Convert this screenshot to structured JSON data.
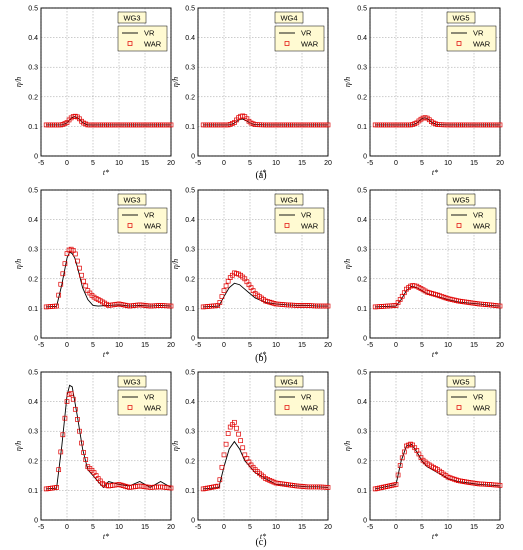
{
  "figure": {
    "row_labels": [
      "(a)",
      "(b)",
      "(c)"
    ]
  },
  "style": {
    "vr_color": "#000000",
    "war_color": "#e00000",
    "legend_bg": "#fffad2"
  },
  "axes": {
    "xlabel": "t*",
    "ylabel": "η/h",
    "xlim": [
      -5,
      20
    ],
    "ylim": [
      0,
      0.5
    ],
    "xticks": [
      "-5",
      "0",
      "5",
      "10",
      "15",
      "20"
    ],
    "yticks": [
      "0",
      "0.1",
      "0.2",
      "0.3",
      "0.4",
      "0.5"
    ]
  },
  "chart_data": [
    {
      "type": "line",
      "title": "WG3",
      "legend": [
        "VR",
        "WAR"
      ],
      "xlim": [
        -5,
        20
      ],
      "ylim": [
        0,
        0.5
      ],
      "series": [
        {
          "name": "VR",
          "x": [
            -4,
            -1,
            0,
            0.5,
            1,
            1.5,
            2,
            2.5,
            3,
            4,
            6,
            20
          ],
          "y": [
            0.105,
            0.105,
            0.112,
            0.122,
            0.13,
            0.133,
            0.13,
            0.122,
            0.112,
            0.105,
            0.105,
            0.105
          ]
        },
        {
          "name": "WAR",
          "x": [
            -4,
            -1,
            0,
            0.5,
            1,
            1.5,
            2,
            2.5,
            3,
            4,
            6,
            20
          ],
          "y": [
            0.105,
            0.105,
            0.113,
            0.124,
            0.132,
            0.135,
            0.132,
            0.124,
            0.113,
            0.105,
            0.105,
            0.105
          ]
        }
      ]
    },
    {
      "type": "line",
      "title": "WG4",
      "legend": [
        "VR",
        "WAR"
      ],
      "xlim": [
        -5,
        20
      ],
      "ylim": [
        0,
        0.5
      ],
      "series": [
        {
          "name": "VR",
          "x": [
            -4,
            1,
            2,
            2.5,
            3,
            3.5,
            4,
            4.5,
            5,
            6,
            8,
            20
          ],
          "y": [
            0.105,
            0.105,
            0.111,
            0.118,
            0.123,
            0.125,
            0.122,
            0.117,
            0.111,
            0.106,
            0.105,
            0.105
          ]
        },
        {
          "name": "WAR",
          "x": [
            -4,
            1,
            2,
            2.5,
            3,
            3.5,
            4,
            4.5,
            5,
            6,
            8,
            20
          ],
          "y": [
            0.105,
            0.105,
            0.113,
            0.124,
            0.133,
            0.136,
            0.133,
            0.124,
            0.113,
            0.106,
            0.105,
            0.105
          ]
        }
      ]
    },
    {
      "type": "line",
      "title": "WG5",
      "legend": [
        "VR",
        "WAR"
      ],
      "xlim": [
        -5,
        20
      ],
      "ylim": [
        0,
        0.5
      ],
      "series": [
        {
          "name": "VR",
          "x": [
            -4,
            3,
            4,
            4.5,
            5,
            5.5,
            6,
            6.5,
            7,
            8,
            10,
            20
          ],
          "y": [
            0.105,
            0.105,
            0.111,
            0.119,
            0.126,
            0.129,
            0.127,
            0.12,
            0.112,
            0.106,
            0.105,
            0.105
          ]
        },
        {
          "name": "WAR",
          "x": [
            -4,
            3,
            4,
            4.5,
            5,
            5.5,
            6,
            6.5,
            7,
            8,
            10,
            20
          ],
          "y": [
            0.105,
            0.105,
            0.112,
            0.12,
            0.127,
            0.13,
            0.128,
            0.121,
            0.113,
            0.106,
            0.105,
            0.105
          ]
        }
      ]
    },
    {
      "type": "line",
      "title": "WG3",
      "legend": [
        "VR",
        "WAR"
      ],
      "xlim": [
        -5,
        20
      ],
      "ylim": [
        0,
        0.5
      ],
      "series": [
        {
          "name": "VR",
          "x": [
            -4,
            -2,
            -1,
            0,
            0.5,
            1,
            1.5,
            2,
            3,
            4,
            5,
            6,
            8,
            10,
            12,
            14,
            16,
            18,
            20
          ],
          "y": [
            0.105,
            0.107,
            0.18,
            0.27,
            0.29,
            0.285,
            0.27,
            0.24,
            0.17,
            0.13,
            0.11,
            0.108,
            0.11,
            0.112,
            0.108,
            0.11,
            0.108,
            0.11,
            0.108
          ]
        },
        {
          "name": "WAR",
          "x": [
            -4,
            -2,
            -1,
            0,
            0.5,
            1,
            1.5,
            2,
            3,
            4,
            5,
            6,
            8,
            10,
            12,
            14,
            16,
            18,
            20
          ],
          "y": [
            0.105,
            0.108,
            0.2,
            0.285,
            0.3,
            0.3,
            0.29,
            0.26,
            0.2,
            0.16,
            0.14,
            0.13,
            0.11,
            0.115,
            0.108,
            0.112,
            0.108,
            0.11,
            0.108
          ]
        }
      ]
    },
    {
      "type": "line",
      "title": "WG4",
      "legend": [
        "VR",
        "WAR"
      ],
      "xlim": [
        -5,
        20
      ],
      "ylim": [
        0,
        0.5
      ],
      "series": [
        {
          "name": "VR",
          "x": [
            -4,
            -1,
            0,
            1,
            2,
            3,
            4,
            5,
            6,
            8,
            10,
            12,
            14,
            16,
            18,
            20
          ],
          "y": [
            0.105,
            0.108,
            0.14,
            0.17,
            0.185,
            0.18,
            0.165,
            0.15,
            0.135,
            0.12,
            0.115,
            0.112,
            0.11,
            0.11,
            0.108,
            0.108
          ]
        },
        {
          "name": "WAR",
          "x": [
            -4,
            -1,
            0,
            1,
            2,
            3,
            4,
            5,
            6,
            8,
            10,
            12,
            14,
            16,
            18,
            20
          ],
          "y": [
            0.105,
            0.11,
            0.16,
            0.2,
            0.22,
            0.215,
            0.2,
            0.175,
            0.15,
            0.125,
            0.115,
            0.112,
            0.11,
            0.11,
            0.108,
            0.108
          ]
        }
      ]
    },
    {
      "type": "line",
      "title": "WG5",
      "legend": [
        "VR",
        "WAR"
      ],
      "xlim": [
        -5,
        20
      ],
      "ylim": [
        0,
        0.5
      ],
      "series": [
        {
          "name": "VR",
          "x": [
            -4,
            0,
            1,
            2,
            3,
            4,
            5,
            6,
            7,
            8,
            10,
            12,
            14,
            16,
            18,
            20
          ],
          "y": [
            0.105,
            0.108,
            0.13,
            0.16,
            0.175,
            0.17,
            0.16,
            0.15,
            0.145,
            0.14,
            0.13,
            0.122,
            0.118,
            0.115,
            0.11,
            0.108
          ]
        },
        {
          "name": "WAR",
          "x": [
            -4,
            0,
            1,
            2,
            3,
            4,
            5,
            6,
            7,
            8,
            10,
            12,
            14,
            16,
            18,
            20
          ],
          "y": [
            0.105,
            0.11,
            0.135,
            0.165,
            0.178,
            0.175,
            0.165,
            0.155,
            0.15,
            0.145,
            0.133,
            0.125,
            0.12,
            0.115,
            0.112,
            0.108
          ]
        }
      ]
    },
    {
      "type": "line",
      "title": "WG3",
      "legend": [
        "VR",
        "WAR"
      ],
      "xlim": [
        -5,
        20
      ],
      "ylim": [
        0,
        0.5
      ],
      "series": [
        {
          "name": "VR",
          "x": [
            -4,
            -2,
            -1,
            0,
            0.5,
            1,
            2,
            3,
            4,
            5,
            6,
            7,
            8,
            10,
            12,
            14,
            16,
            18,
            20
          ],
          "y": [
            0.105,
            0.108,
            0.25,
            0.42,
            0.455,
            0.45,
            0.35,
            0.24,
            0.17,
            0.15,
            0.13,
            0.11,
            0.13,
            0.12,
            0.115,
            0.13,
            0.11,
            0.13,
            0.11
          ]
        },
        {
          "name": "WAR",
          "x": [
            -4,
            -2,
            -1,
            0,
            0.5,
            1,
            2,
            3,
            4,
            5,
            6,
            7,
            8,
            10,
            12,
            14,
            16,
            18,
            20
          ],
          "y": [
            0.105,
            0.11,
            0.26,
            0.4,
            0.43,
            0.425,
            0.34,
            0.24,
            0.18,
            0.165,
            0.14,
            0.12,
            0.115,
            0.12,
            0.11,
            0.115,
            0.11,
            0.112,
            0.108
          ]
        }
      ]
    },
    {
      "type": "line",
      "title": "WG4",
      "legend": [
        "VR",
        "WAR"
      ],
      "xlim": [
        -5,
        20
      ],
      "ylim": [
        0,
        0.5
      ],
      "series": [
        {
          "name": "VR",
          "x": [
            -4,
            -1,
            0,
            1,
            2,
            3,
            4,
            5,
            6,
            8,
            10,
            12,
            14,
            16,
            18,
            20
          ],
          "y": [
            0.105,
            0.11,
            0.18,
            0.24,
            0.265,
            0.24,
            0.2,
            0.18,
            0.16,
            0.14,
            0.12,
            0.118,
            0.115,
            0.112,
            0.112,
            0.11
          ]
        },
        {
          "name": "WAR",
          "x": [
            -4,
            -1,
            0,
            1,
            2,
            3,
            4,
            5,
            6,
            8,
            10,
            12,
            14,
            16,
            18,
            20
          ],
          "y": [
            0.105,
            0.115,
            0.22,
            0.31,
            0.33,
            0.28,
            0.22,
            0.19,
            0.17,
            0.14,
            0.125,
            0.12,
            0.115,
            0.112,
            0.112,
            0.11
          ]
        }
      ]
    },
    {
      "type": "line",
      "title": "WG5",
      "legend": [
        "VR",
        "WAR"
      ],
      "xlim": [
        -5,
        20
      ],
      "ylim": [
        0,
        0.5
      ],
      "series": [
        {
          "name": "VR",
          "x": [
            -4,
            0,
            1,
            2,
            3,
            4,
            5,
            6,
            8,
            10,
            12,
            14,
            16,
            18,
            20
          ],
          "y": [
            0.105,
            0.12,
            0.2,
            0.25,
            0.255,
            0.23,
            0.2,
            0.18,
            0.16,
            0.14,
            0.13,
            0.125,
            0.12,
            0.118,
            0.115
          ]
        },
        {
          "name": "WAR",
          "x": [
            -4,
            0,
            1,
            2,
            3,
            4,
            5,
            6,
            8,
            10,
            12,
            14,
            16,
            18,
            20
          ],
          "y": [
            0.105,
            0.12,
            0.2,
            0.25,
            0.258,
            0.235,
            0.205,
            0.19,
            0.17,
            0.145,
            0.133,
            0.127,
            0.122,
            0.12,
            0.117
          ]
        }
      ]
    }
  ]
}
